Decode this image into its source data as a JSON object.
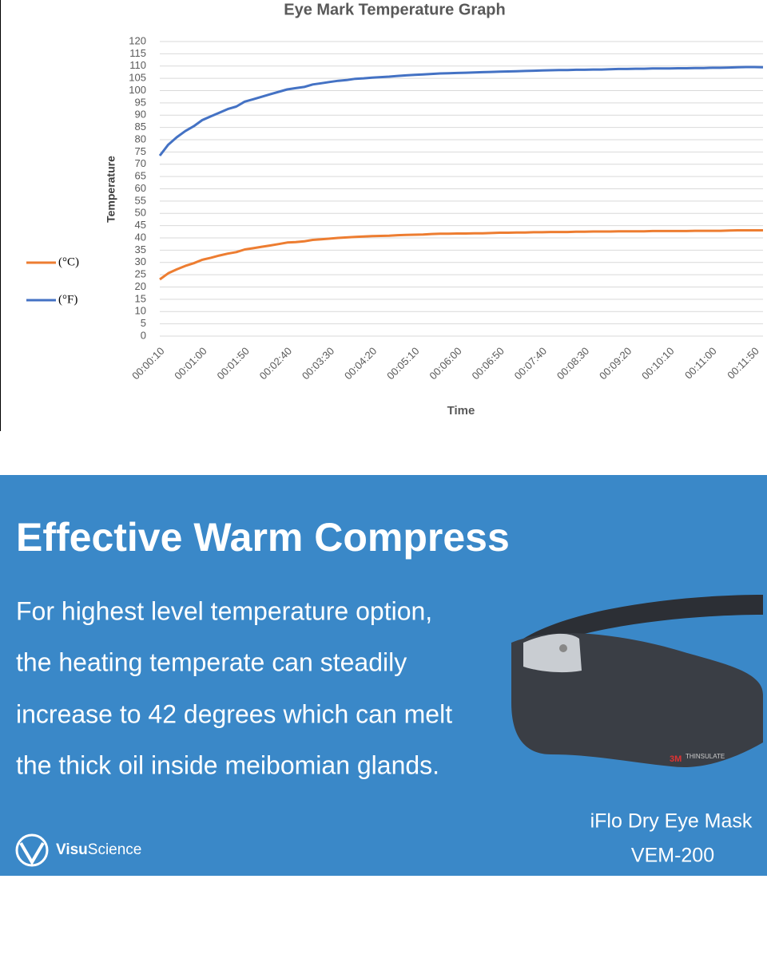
{
  "chart_data": {
    "type": "line",
    "title": "Eye Mark Temperature Graph",
    "x_label": "Time",
    "y_label": "Temperature",
    "categories": [
      "00:00:10",
      null,
      null,
      null,
      null,
      "00:01:00",
      null,
      null,
      null,
      null,
      "00:01:50",
      null,
      null,
      null,
      null,
      "00:02:40",
      null,
      null,
      null,
      null,
      "00:03:30",
      null,
      null,
      null,
      null,
      "00:04:20",
      null,
      null,
      null,
      null,
      "00:05:10",
      null,
      null,
      null,
      null,
      "00:06:00",
      null,
      null,
      null,
      null,
      "00:06:50",
      null,
      null,
      null,
      null,
      "00:07:40",
      null,
      null,
      null,
      null,
      "00:08:30",
      null,
      null,
      null,
      null,
      "00:09:20",
      null,
      null,
      null,
      null,
      "00:10:10",
      null,
      null,
      null,
      null,
      "00:11:00",
      null,
      null,
      null,
      null,
      "00:11:50",
      null
    ],
    "series": [
      {
        "name": "(°C)",
        "color": "#ed7d31",
        "values": [
          23.1,
          25.6,
          27.2,
          28.6,
          29.7,
          31.1,
          31.9,
          32.8,
          33.6,
          34.2,
          35.3,
          35.8,
          36.4,
          36.9,
          37.5,
          38.1,
          38.3,
          38.6,
          39.2,
          39.4,
          39.7,
          40,
          40.2,
          40.4,
          40.6,
          40.7,
          40.8,
          40.9,
          41.1,
          41.2,
          41.3,
          41.4,
          41.6,
          41.7,
          41.7,
          41.8,
          41.8,
          41.9,
          41.9,
          42,
          42.1,
          42.1,
          42.2,
          42.2,
          42.3,
          42.3,
          42.4,
          42.4,
          42.4,
          42.5,
          42.5,
          42.6,
          42.6,
          42.6,
          42.7,
          42.7,
          42.7,
          42.7,
          42.8,
          42.8,
          42.8,
          42.8,
          42.8,
          42.9,
          42.9,
          42.9,
          42.9,
          43,
          43.1,
          43.1,
          43.1,
          43.1
        ]
      },
      {
        "name": "(°F)",
        "color": "#4472c4",
        "values": [
          73.5,
          78,
          81,
          83.5,
          85.5,
          88,
          89.5,
          91,
          92.5,
          93.5,
          95.5,
          96.5,
          97.5,
          98.5,
          99.5,
          100.5,
          101,
          101.5,
          102.5,
          103,
          103.5,
          104,
          104.3,
          104.8,
          105,
          105.3,
          105.5,
          105.7,
          106,
          106.2,
          106.4,
          106.6,
          106.8,
          107,
          107.1,
          107.2,
          107.3,
          107.4,
          107.5,
          107.6,
          107.7,
          107.8,
          107.9,
          108,
          108.1,
          108.2,
          108.3,
          108.4,
          108.4,
          108.5,
          108.5,
          108.6,
          108.6,
          108.7,
          108.8,
          108.8,
          108.9,
          108.9,
          109,
          109,
          109,
          109.1,
          109.1,
          109.2,
          109.2,
          109.3,
          109.3,
          109.4,
          109.5,
          109.6,
          109.6,
          109.5
        ]
      }
    ],
    "ylim": [
      0,
      120
    ],
    "yticks": [
      0,
      5,
      10,
      15,
      20,
      25,
      30,
      35,
      40,
      45,
      50,
      55,
      60,
      65,
      70,
      75,
      80,
      85,
      90,
      95,
      100,
      105,
      110,
      115,
      120
    ],
    "grid": true,
    "legend": "left"
  },
  "banner": {
    "title": "Effective Warm Compress",
    "lines": [
      "For highest level temperature option,",
      "the heating temperate can steadily",
      "increase to 42 degrees which can melt",
      "the thick oil inside meibomian glands."
    ],
    "product": {
      "name": "iFlo Dry Eye Mask",
      "model": "VEM-200"
    },
    "logo": {
      "bold": "Visu",
      "rest": "Science"
    },
    "mask_labels": [
      "3M",
      "THINSULATE"
    ]
  }
}
